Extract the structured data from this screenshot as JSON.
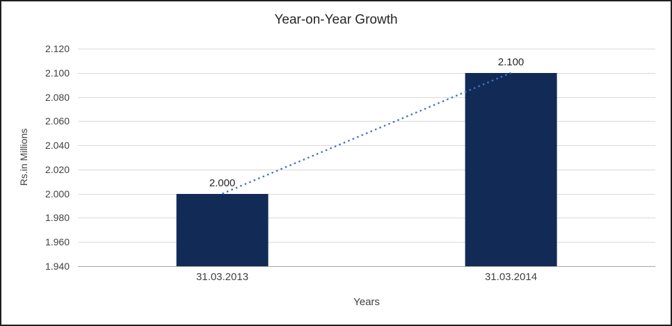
{
  "chart_data": {
    "type": "bar",
    "title": "Year-on-Year Growth",
    "xlabel": "Years",
    "ylabel": "Rs.in Millions",
    "categories": [
      "31.03.2013",
      "31.03.2014"
    ],
    "values": [
      2.0,
      2.1
    ],
    "value_labels": [
      "2.000",
      "2.100"
    ],
    "ylim": [
      1.94,
      2.12
    ],
    "ytick_step": 0.02,
    "ytick_labels": [
      "1.940",
      "1.960",
      "1.980",
      "2.000",
      "2.020",
      "2.040",
      "2.060",
      "2.080",
      "2.100",
      "2.120"
    ],
    "grid": true,
    "legend": "none",
    "bar_color": "#122a56",
    "trendline": {
      "style": "dotted",
      "color": "#4472c4"
    }
  }
}
